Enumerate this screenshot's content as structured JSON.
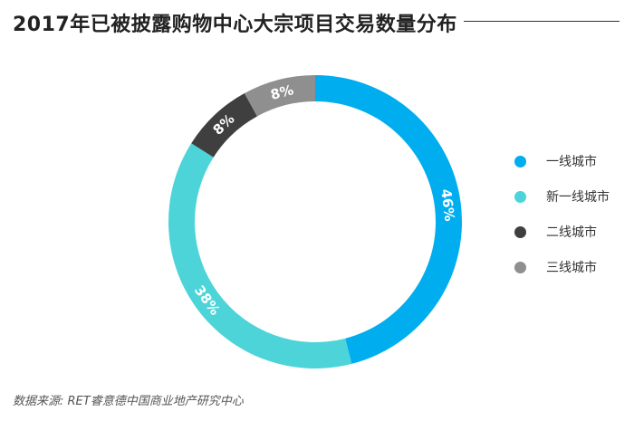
{
  "chart_data": {
    "type": "pie",
    "donut": true,
    "title": "2017年已被披露购物中心大宗项目交易数量分布",
    "categories": [
      "一线城市",
      "新一线城市",
      "二线城市",
      "三线城市"
    ],
    "values": [
      46,
      38,
      8,
      8
    ],
    "value_labels": [
      "46%",
      "38%",
      "8%",
      "8%"
    ],
    "colors": [
      "#00aeef",
      "#4dd4d9",
      "#3f3f3f",
      "#8f8f8f"
    ],
    "legend_position": "right",
    "source": "数据来源: RET睿意德中国商业地产研究中心"
  }
}
